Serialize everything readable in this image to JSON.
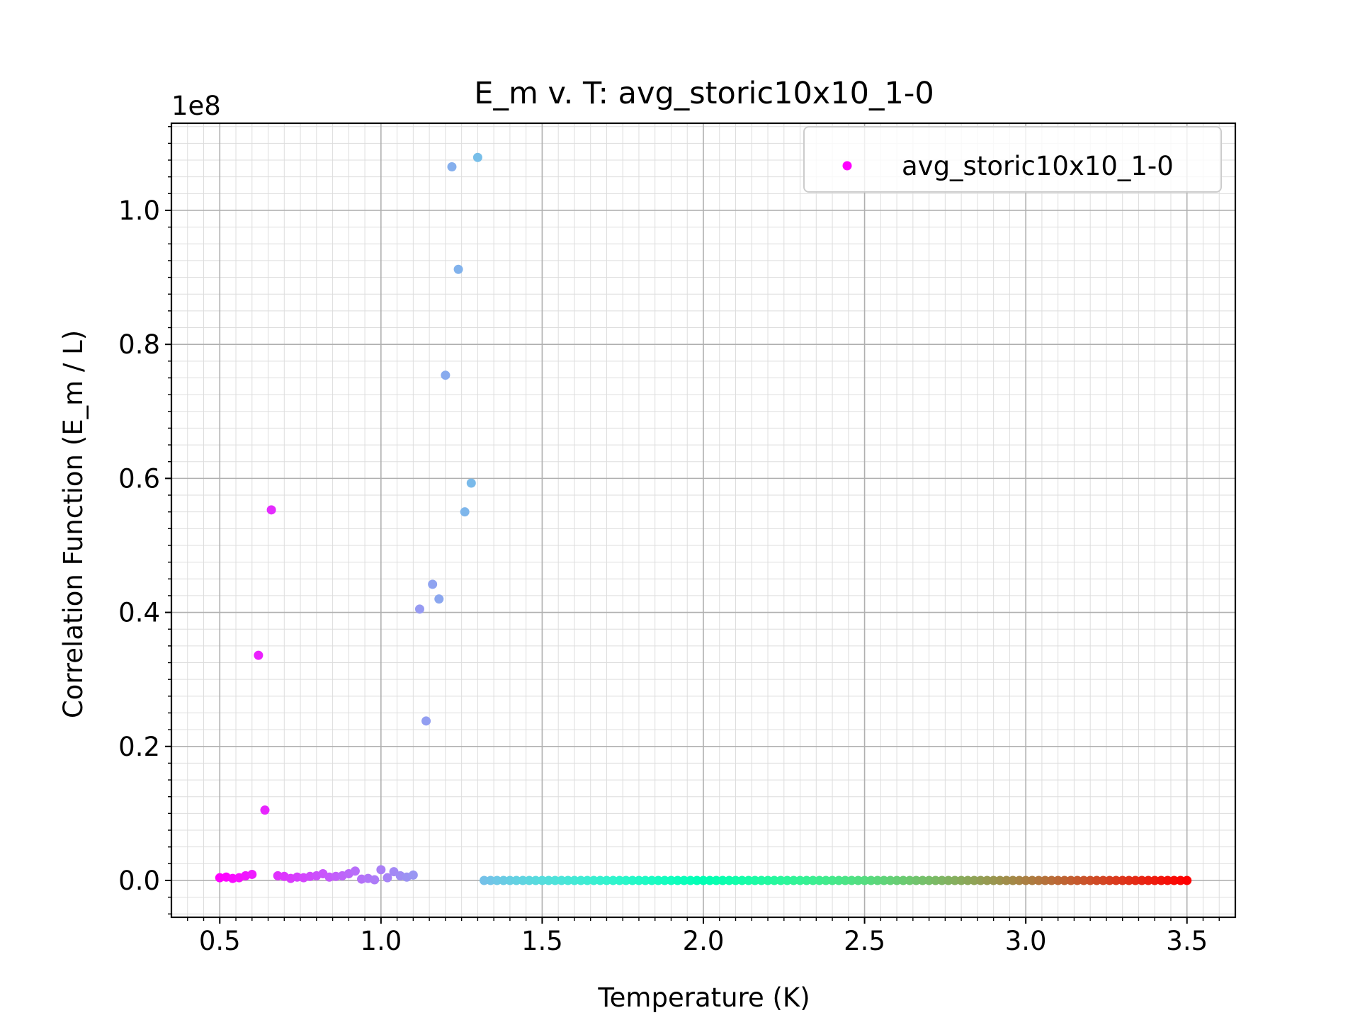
{
  "chart_data": {
    "type": "scatter",
    "title": "E_m v. T: avg_storic10x10_1-0",
    "xlabel": "Temperature (K)",
    "ylabel": "Correlation Function (E_m / L)",
    "offset_text": "1e8",
    "xlim": [
      0.35,
      3.65
    ],
    "ylim": [
      -5500000,
      113000000
    ],
    "x_ticks": [
      0.5,
      1.0,
      1.5,
      2.0,
      2.5,
      3.0,
      3.5
    ],
    "x_tick_labels": [
      "0.5",
      "1.0",
      "1.5",
      "2.0",
      "2.5",
      "3.0",
      "3.5"
    ],
    "y_ticks": [
      0,
      20000000,
      40000000,
      60000000,
      80000000,
      100000000
    ],
    "y_tick_labels": [
      "0.0",
      "0.2",
      "0.4",
      "0.6",
      "0.8",
      "1.0"
    ],
    "grid": "major and minor",
    "legend": {
      "placement": "top-right",
      "entries": [
        "avg_storic10x10_1-0"
      ]
    },
    "colormap": "rainbow",
    "series": [
      {
        "name": "avg_storic10x10_1-0",
        "x_start": 0.5,
        "x_step": 0.02,
        "values": [
          400000,
          500000,
          300000,
          400000,
          700000,
          900000,
          33600000,
          10500000,
          55300000,
          700000,
          600000,
          300000,
          500000,
          400000,
          600000,
          700000,
          1000000,
          500000,
          600000,
          700000,
          1000000,
          1400000,
          200000,
          300000,
          100000,
          1600000,
          400000,
          1300000,
          700000,
          500000,
          800000,
          40500000,
          23800000,
          44200000,
          42000000,
          75400000,
          106500000,
          91200000,
          55000000,
          59300000,
          107900000
        ],
        "tail_x_start": 1.32,
        "tail_x_end": 3.5,
        "tail_x_step": 0.02,
        "tail_value": 0
      }
    ]
  }
}
